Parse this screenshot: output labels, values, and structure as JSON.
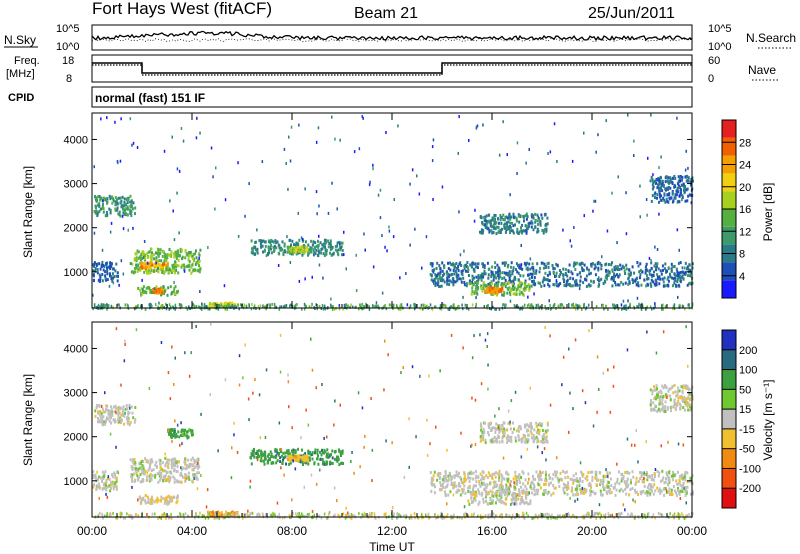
{
  "header": {
    "station": "Fort Hays West (fitACF)",
    "beam": "Beam 21",
    "date": "25/Jun/2011"
  },
  "noise_panel": {
    "left_label": "N.Sky",
    "right_label": "N.Search",
    "ticks_left": [
      "10^5",
      "10^0"
    ],
    "ticks_right": [
      "10^5",
      "10^0"
    ]
  },
  "freq_panel": {
    "left_label_1": "Freq.",
    "left_label_2": "[MHz]",
    "right_label": "Nave",
    "ticks_left": [
      "18",
      "8"
    ],
    "ticks_right": [
      "60",
      "0"
    ],
    "step_series": [
      {
        "t": 0.0,
        "level": "high"
      },
      {
        "t": 2.0,
        "level": "low"
      },
      {
        "t": 14.0,
        "level": "high"
      },
      {
        "t": 24.0,
        "level": "high"
      }
    ]
  },
  "cpid": {
    "label": "CPID",
    "text": "normal (fast) 151 IF"
  },
  "x_axis": {
    "label": "Time UT",
    "ticks": [
      "00:00",
      "04:00",
      "08:00",
      "12:00",
      "16:00",
      "20:00",
      "00:00"
    ],
    "range_hours": [
      0,
      24
    ]
  },
  "chart_data": [
    {
      "type": "heatmap",
      "title": "",
      "xlabel": "Time UT",
      "ylabel": "Slant Range [km]",
      "x_unit": "hours UT",
      "yticks": [
        "1000",
        "2000",
        "3000",
        "4000"
      ],
      "ylim": [
        180,
        4600
      ],
      "colorbar": {
        "label": "Power [dB]",
        "ticks": [
          "4",
          "8",
          "12",
          "16",
          "20",
          "24",
          "28"
        ],
        "range": [
          0,
          30
        ]
      },
      "regions": [
        {
          "t0": 0.05,
          "t1": 1.7,
          "r0": 2300,
          "r1": 2750,
          "value": 10
        },
        {
          "t0": 0.0,
          "t1": 1.0,
          "r0": 800,
          "r1": 1250,
          "value": 6
        },
        {
          "t0": 1.5,
          "t1": 4.3,
          "r0": 1000,
          "r1": 1550,
          "value": 14
        },
        {
          "t0": 1.9,
          "t1": 3.0,
          "r0": 1100,
          "r1": 1250,
          "value": 22
        },
        {
          "t0": 1.8,
          "t1": 3.4,
          "r0": 500,
          "r1": 700,
          "value": 14
        },
        {
          "t0": 2.4,
          "t1": 2.8,
          "r0": 550,
          "r1": 650,
          "value": 24
        },
        {
          "t0": 4.6,
          "t1": 5.8,
          "r0": 220,
          "r1": 330,
          "value": 18
        },
        {
          "t0": 6.3,
          "t1": 10.0,
          "r0": 1400,
          "r1": 1750,
          "value": 9
        },
        {
          "t0": 7.8,
          "t1": 8.6,
          "r0": 1480,
          "r1": 1600,
          "value": 16
        },
        {
          "t0": 13.5,
          "t1": 24.0,
          "r0": 700,
          "r1": 1250,
          "value": 7
        },
        {
          "t0": 15.0,
          "t1": 17.5,
          "r0": 500,
          "r1": 800,
          "value": 14
        },
        {
          "t0": 15.7,
          "t1": 16.4,
          "r0": 560,
          "r1": 680,
          "value": 24
        },
        {
          "t0": 15.5,
          "t1": 18.2,
          "r0": 1900,
          "r1": 2350,
          "value": 8
        },
        {
          "t0": 22.3,
          "t1": 24.0,
          "r0": 2600,
          "r1": 3200,
          "value": 6
        }
      ]
    },
    {
      "type": "heatmap",
      "title": "",
      "xlabel": "Time UT",
      "ylabel": "Slant Range [km]",
      "x_unit": "hours UT",
      "yticks": [
        "1000",
        "2000",
        "3000",
        "4000"
      ],
      "ylim": [
        180,
        4600
      ],
      "colorbar": {
        "label": "Velocity [m s⁻¹]",
        "ticks": [
          "200",
          "100",
          "50",
          "15",
          "-15",
          "-50",
          "-100",
          "-200"
        ],
        "range": [
          -250,
          250
        ]
      },
      "regions": [
        {
          "t0": 0.05,
          "t1": 1.7,
          "r0": 2300,
          "r1": 2750,
          "value": 0
        },
        {
          "t0": 0.0,
          "t1": 1.0,
          "r0": 800,
          "r1": 1250,
          "value": 0
        },
        {
          "t0": 1.5,
          "t1": 4.3,
          "r0": 1000,
          "r1": 1550,
          "value": 0
        },
        {
          "t0": 1.8,
          "t1": 3.4,
          "r0": 500,
          "r1": 700,
          "value": -20
        },
        {
          "t0": 4.6,
          "t1": 5.8,
          "r0": 220,
          "r1": 330,
          "value": -60
        },
        {
          "t0": 6.3,
          "t1": 10.0,
          "r0": 1400,
          "r1": 1750,
          "value": 60
        },
        {
          "t0": 7.8,
          "t1": 8.6,
          "r0": 1480,
          "r1": 1600,
          "value": -40
        },
        {
          "t0": 13.5,
          "t1": 24.0,
          "r0": 700,
          "r1": 1250,
          "value": 0
        },
        {
          "t0": 15.0,
          "t1": 17.5,
          "r0": 500,
          "r1": 800,
          "value": 0
        },
        {
          "t0": 15.5,
          "t1": 18.2,
          "r0": 1900,
          "r1": 2350,
          "value": 0
        },
        {
          "t0": 22.3,
          "t1": 24.0,
          "r0": 2600,
          "r1": 3200,
          "value": 0
        },
        {
          "t0": 3.0,
          "t1": 4.0,
          "r0": 2000,
          "r1": 2200,
          "value": 40
        }
      ]
    }
  ]
}
